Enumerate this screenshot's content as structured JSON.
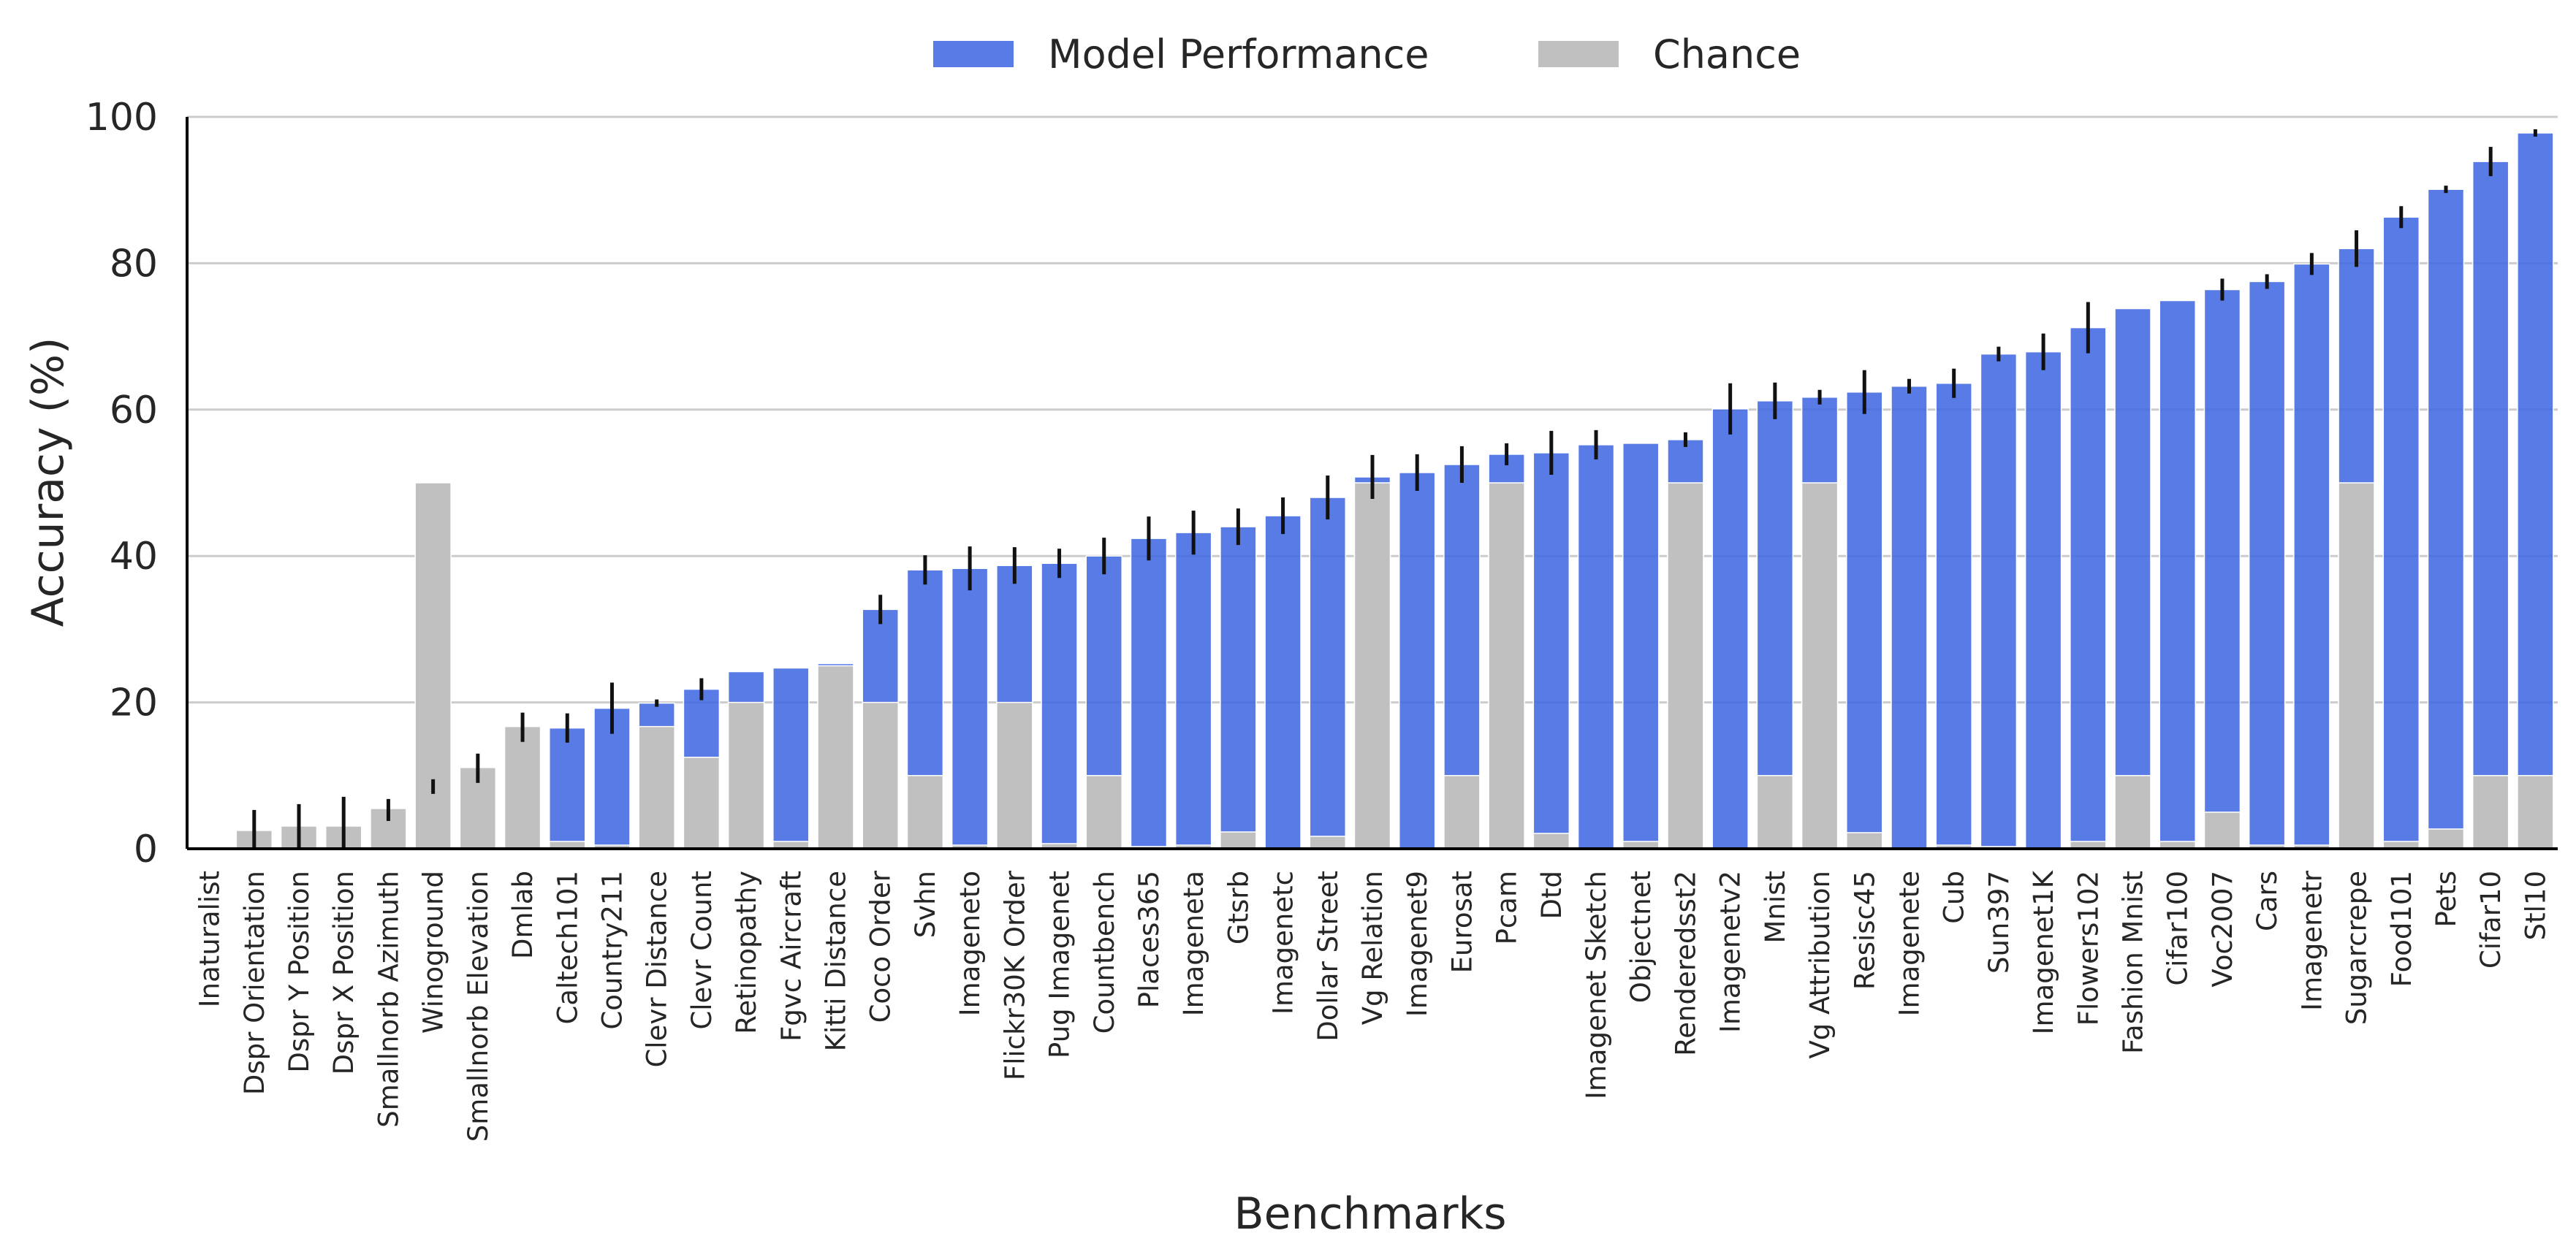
{
  "chart_data": {
    "type": "bar",
    "xlabel": "Benchmarks",
    "ylabel": "Accuracy (%)",
    "ylim": [
      0,
      100
    ],
    "yticks": [
      0,
      20,
      40,
      60,
      80,
      100
    ],
    "grid": "horizontal",
    "legend": "top-center",
    "categories": [
      "Inaturalist",
      "Dspr Orientation",
      "Dspr Y Position",
      "Dspr X Position",
      "Smallnorb Azimuth",
      "Winoground",
      "Smallnorb Elevation",
      "Dmlab",
      "Caltech101",
      "Country211",
      "Clevr Distance",
      "Clevr Count",
      "Retinopathy",
      "Fgvc Aircraft",
      "Kitti Distance",
      "Coco Order",
      "Svhn",
      "Imageneto",
      "Flickr30K Order",
      "Pug Imagenet",
      "Countbench",
      "Places365",
      "Imageneta",
      "Gtsrb",
      "Imagenetc",
      "Dollar Street",
      "Vg Relation",
      "Imagenet9",
      "Eurosat",
      "Pcam",
      "Dtd",
      "Imagenet Sketch",
      "Objectnet",
      "Renderedsst2",
      "Imagenetv2",
      "Mnist",
      "Vg Attribution",
      "Resisc45",
      "Imagenete",
      "Cub",
      "Sun397",
      "Imagenet1K",
      "Flowers102",
      "Fashion Mnist",
      "Cifar100",
      "Voc2007",
      "Cars",
      "Imagenetr",
      "Sugarcrepe",
      "Food101",
      "Pets",
      "Cifar10",
      "Stl10"
    ],
    "series": [
      {
        "name": "Model Performance",
        "color": "#4169e1",
        "values": [
          0.3,
          1.3,
          3.1,
          3.1,
          5.3,
          8.5,
          11.0,
          16.6,
          16.5,
          19.2,
          19.9,
          21.8,
          24.2,
          24.7,
          25.3,
          32.7,
          38.1,
          38.3,
          38.7,
          39.0,
          40.0,
          42.4,
          43.2,
          44.0,
          45.5,
          48.0,
          50.8,
          51.4,
          52.5,
          53.9,
          54.1,
          55.2,
          55.4,
          55.9,
          60.1,
          61.2,
          61.7,
          62.4,
          63.2,
          63.6,
          67.6,
          67.9,
          71.2,
          73.8,
          74.9,
          76.4,
          77.5,
          79.9,
          82.0,
          86.3,
          90.1,
          93.9,
          97.8
        ],
        "errors": [
          0,
          4,
          3,
          4,
          1.5,
          1,
          2,
          2,
          2,
          3.5,
          0.5,
          1.5,
          0,
          0,
          0,
          2,
          2,
          3,
          2.5,
          2,
          2.5,
          3,
          3,
          2.5,
          2.5,
          3,
          3,
          2.5,
          2.5,
          1.5,
          3,
          2,
          0,
          1,
          3.5,
          2.5,
          1,
          3,
          1,
          2,
          1,
          2.5,
          3.5,
          0,
          0,
          1.5,
          1,
          1.5,
          2.5,
          1.5,
          0.5,
          2,
          0.5
        ]
      },
      {
        "name": "Chance",
        "color": "#c0c0c0",
        "values": [
          0.2,
          2.5,
          3.1,
          3.1,
          5.5,
          50,
          11.1,
          16.7,
          1.0,
          0.5,
          16.7,
          12.5,
          20,
          1.0,
          25,
          20,
          10,
          0.5,
          20,
          0.7,
          10,
          0.3,
          0.5,
          2.3,
          0.1,
          1.7,
          50,
          0.1,
          10,
          50,
          2.1,
          0.1,
          1.0,
          50,
          0.1,
          10,
          50,
          2.2,
          0.1,
          0.5,
          0.3,
          0.1,
          1.0,
          10,
          1.0,
          5.0,
          0.5,
          0.5,
          50,
          1.0,
          2.7,
          10,
          10
        ]
      }
    ]
  }
}
